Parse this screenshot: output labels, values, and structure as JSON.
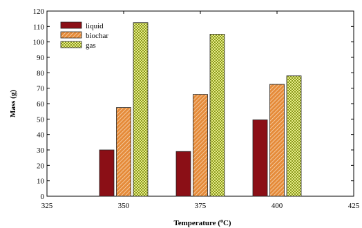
{
  "chart_data": {
    "type": "bar",
    "x_axis_type": "numeric",
    "categories_x": [
      350,
      375,
      400
    ],
    "series": [
      {
        "name": "liquid",
        "values": [
          30,
          29,
          49.5
        ],
        "color": "#8b0f16",
        "pattern": "solid"
      },
      {
        "name": "biochar",
        "values": [
          57.5,
          66,
          72.5
        ],
        "color": "#e58b3a",
        "pattern": "diagonal-hatch"
      },
      {
        "name": "gas",
        "values": [
          112.5,
          105,
          78
        ],
        "color": "#8a9a1c",
        "pattern": "crosshatch"
      }
    ],
    "xlim": [
      325,
      425
    ],
    "ylim": [
      0,
      120
    ],
    "xticks": [
      "325",
      "350",
      "375",
      "400",
      "425"
    ],
    "yticks": [
      "0",
      "10",
      "20",
      "30",
      "40",
      "50",
      "60",
      "70",
      "80",
      "90",
      "100",
      "110",
      "120"
    ],
    "xlabel": "Temperature (",
    "xlabel_sup": "o",
    "xlabel_end": "C)",
    "ylabel": "Mass (g)",
    "grid": false,
    "legend_position": "top-left"
  }
}
